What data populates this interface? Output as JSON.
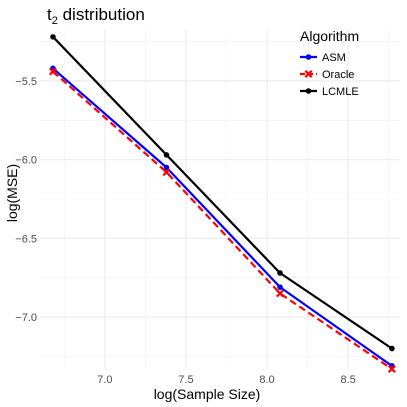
{
  "chart_data": {
    "type": "line",
    "title": "t",
    "title_sub": "2",
    "title_rest": " distribution",
    "xlabel": "log(Sample Size)",
    "ylabel": "log(MSE)",
    "xlim": [
      6.6,
      8.82
    ],
    "ylim": [
      -7.33,
      -5.17
    ],
    "x_ticks": [
      7.0,
      7.5,
      8.0,
      8.5
    ],
    "x_tick_labels": [
      "7.0",
      "7.5",
      "8.0",
      "8.5"
    ],
    "y_ticks": [
      -5.5,
      -6.0,
      -6.5,
      -7.0
    ],
    "y_tick_labels": [
      "−5.5",
      "−6.0",
      "−6.5",
      "−7.0"
    ],
    "grid": true,
    "legend": {
      "title": "Algorithm",
      "position": "top-right"
    },
    "x": [
      6.68,
      7.38,
      8.08,
      8.77
    ],
    "series": [
      {
        "name": "ASM",
        "color": "#0000ff",
        "style": "solid",
        "marker": "circle",
        "values": [
          -5.42,
          -6.05,
          -6.81,
          -7.31
        ]
      },
      {
        "name": "Oracle",
        "color": "#ff0000",
        "style": "dashed",
        "marker": "x",
        "values": [
          -5.44,
          -6.08,
          -6.85,
          -7.33
        ]
      },
      {
        "name": "LCMLE",
        "color": "#000000",
        "style": "solid",
        "marker": "circle",
        "values": [
          -5.22,
          -5.97,
          -6.72,
          -7.2
        ]
      }
    ]
  }
}
